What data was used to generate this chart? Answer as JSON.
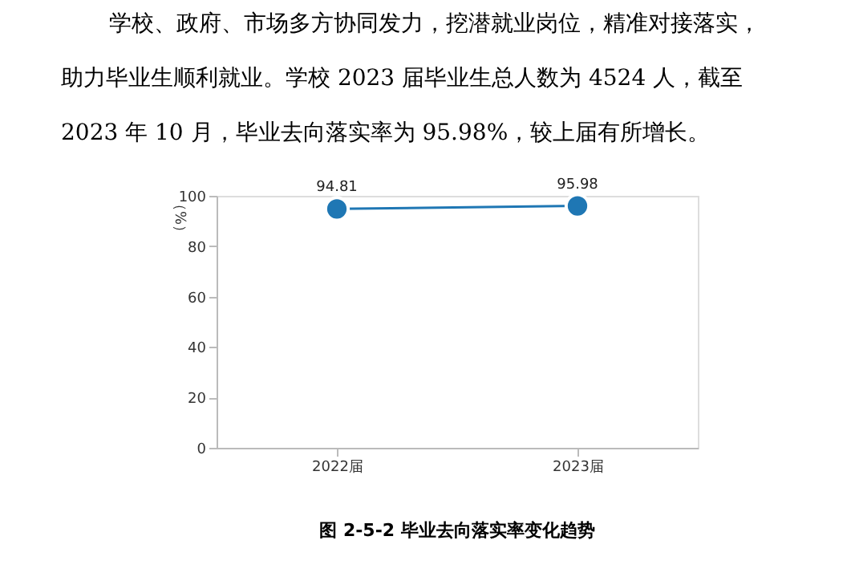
{
  "chart_data": {
    "type": "line",
    "title": "图 2-5-2 毕业去向落实率变化趋势",
    "ylabel": "（%）",
    "annotations": [
      "学校、政府、市场多方协同发力，挖潜就业岗位，精准对接落实，",
      "助力毕业生顺利就业。学校 2023 届毕业生总人数为 4524 人，截至",
      "2023 年 10 月，毕业去向落实率为 95.98%，较上届有所增长。"
    ],
    "categories": [
      "2022届",
      "2023届"
    ],
    "series": [
      {
        "color": "#1f77b4",
        "values": [
          94.81,
          95.98
        ]
      }
    ],
    "ylim": [
      0,
      100
    ],
    "yticks": [
      0,
      20,
      40,
      60,
      80,
      100
    ],
    "data_labels": true,
    "marker": "circle",
    "grid": false
  }
}
